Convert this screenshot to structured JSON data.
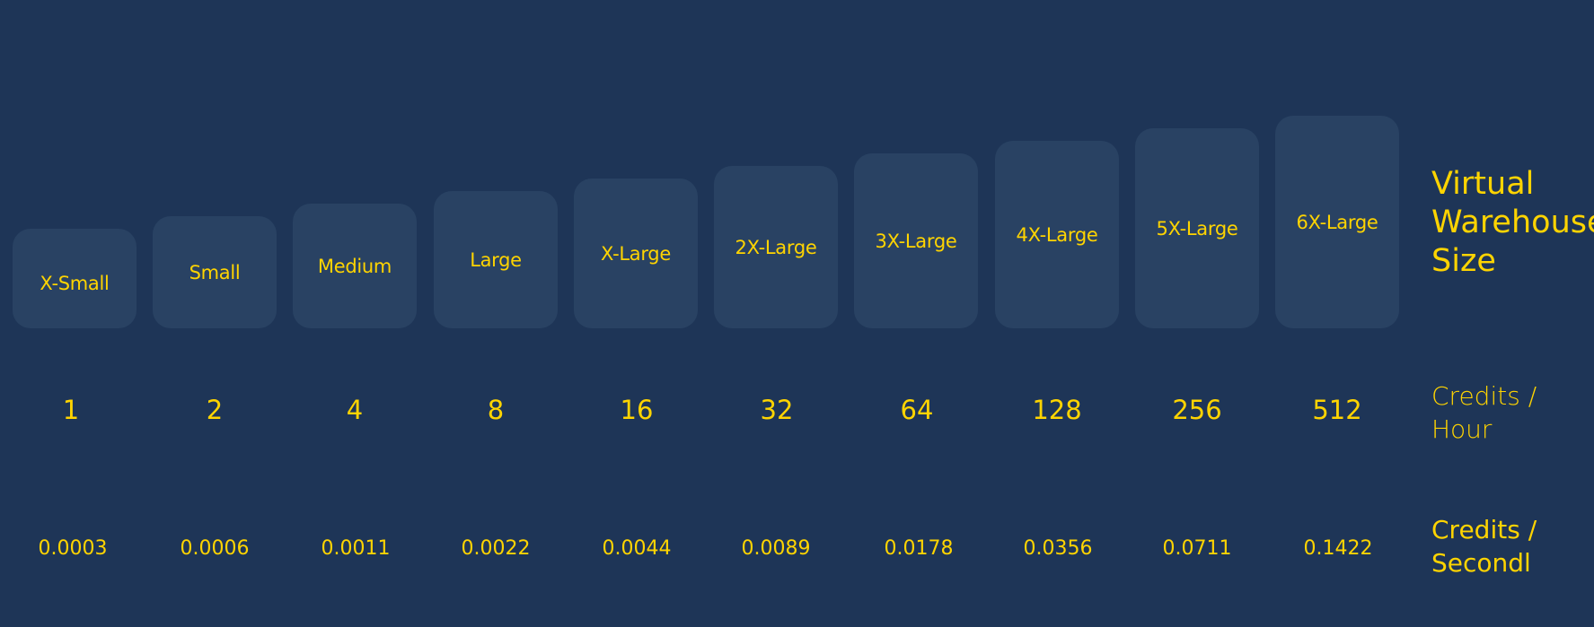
{
  "labels": {
    "size_title": "Virtual\nWarehouse\nSize",
    "credits_hour": "Credits /\nHour",
    "credits_second": "Credits /\nSecondl"
  },
  "sizes": [
    {
      "name": "X-Small",
      "credits_per_hour": "1",
      "credits_per_second": "0.0003"
    },
    {
      "name": "Small",
      "credits_per_hour": "2",
      "credits_per_second": "0.0006"
    },
    {
      "name": "Medium",
      "credits_per_hour": "4",
      "credits_per_second": "0.0011"
    },
    {
      "name": "Large",
      "credits_per_hour": "8",
      "credits_per_second": "0.0022"
    },
    {
      "name": "X-Large",
      "credits_per_hour": "16",
      "credits_per_second": "0.0044"
    },
    {
      "name": "2X-Large",
      "credits_per_hour": "32",
      "credits_per_second": "0.0089"
    },
    {
      "name": "3X-Large",
      "credits_per_hour": "64",
      "credits_per_second": "0.0178"
    },
    {
      "name": "4X-Large",
      "credits_per_hour": "128",
      "credits_per_second": "0.0356"
    },
    {
      "name": "5X-Large",
      "credits_per_hour": "256",
      "credits_per_second": "0.0711"
    },
    {
      "name": "6X-Large",
      "credits_per_hour": "512",
      "credits_per_second": "0.1422"
    }
  ],
  "colors": {
    "background": "#1e3557",
    "box": "#294263",
    "text": "#ffd400"
  }
}
